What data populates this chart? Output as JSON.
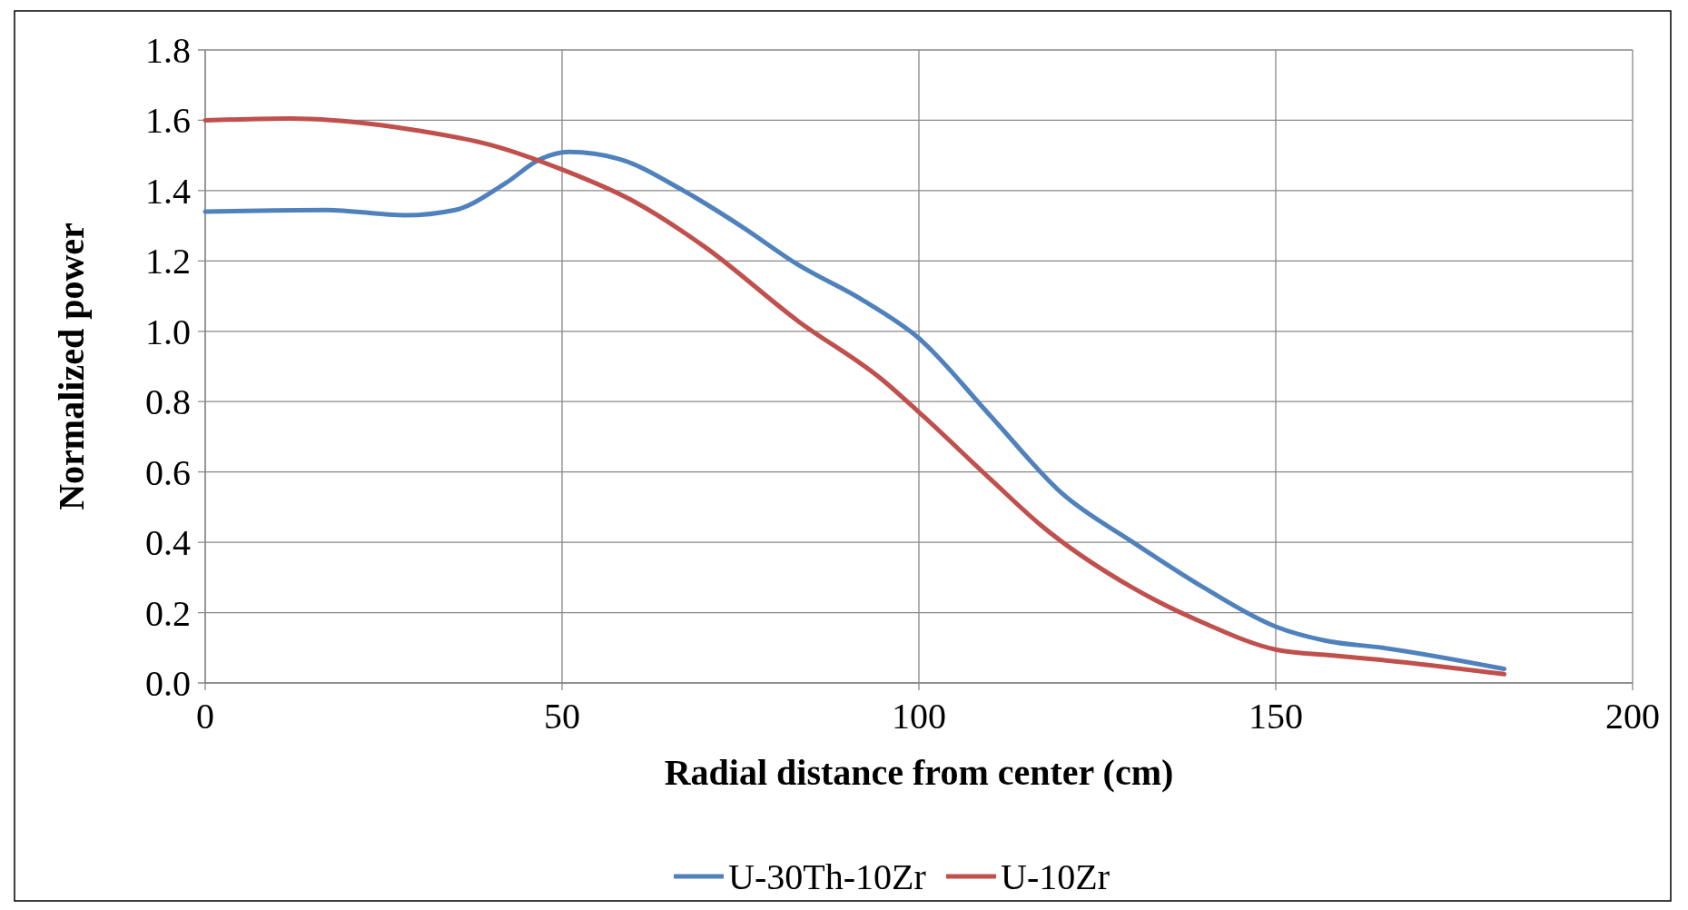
{
  "chart_data": {
    "type": "line",
    "xlabel": "Radial distance from center (cm)",
    "ylabel": "Normalized power",
    "xlim": [
      0,
      200
    ],
    "xticks": [
      0,
      50,
      100,
      150,
      200
    ],
    "ylim": [
      0,
      1.8
    ],
    "yticks": [
      {
        "value": 0,
        "label": "0.0"
      },
      {
        "value": 0.2,
        "label": "0.2"
      },
      {
        "value": 0.4,
        "label": "0.4"
      },
      {
        "value": 0.6,
        "label": "0.6"
      },
      {
        "value": 0.8,
        "label": "0.8"
      },
      {
        "value": 1,
        "label": "1.0"
      },
      {
        "value": 1.2,
        "label": "1.2"
      },
      {
        "value": 1.4,
        "label": "1.4"
      },
      {
        "value": 1.6,
        "label": "1.6"
      },
      {
        "value": 1.8,
        "label": "1.8"
      }
    ],
    "grid": true,
    "legend": "bottom",
    "marker": "none",
    "line_style": "solid",
    "series": [
      {
        "name": "U-30Th-10Zr",
        "color": "#4f81bd",
        "x": [
          0,
          17,
          28,
          35,
          42,
          47,
          51,
          58,
          67,
          75,
          83,
          92,
          100,
          110,
          120,
          130,
          140,
          150,
          157,
          165,
          182
        ],
        "values": [
          1.34,
          1.345,
          1.33,
          1.345,
          1.42,
          1.49,
          1.51,
          1.49,
          1.4,
          1.3,
          1.19,
          1.09,
          0.98,
          0.76,
          0.54,
          0.4,
          0.27,
          0.16,
          0.12,
          0.1,
          0.04
        ]
      },
      {
        "name": "U-10Zr",
        "color": "#c0504d",
        "x": [
          0,
          12,
          18,
          30,
          40,
          50,
          60,
          70,
          83,
          95,
          100,
          110,
          117,
          130,
          140,
          150,
          158,
          165,
          182
        ],
        "values": [
          1.6,
          1.605,
          1.6,
          1.57,
          1.53,
          1.46,
          1.37,
          1.24,
          1.03,
          0.86,
          0.77,
          0.58,
          0.45,
          0.27,
          0.17,
          0.095,
          0.078,
          0.065,
          0.025
        ]
      }
    ]
  }
}
